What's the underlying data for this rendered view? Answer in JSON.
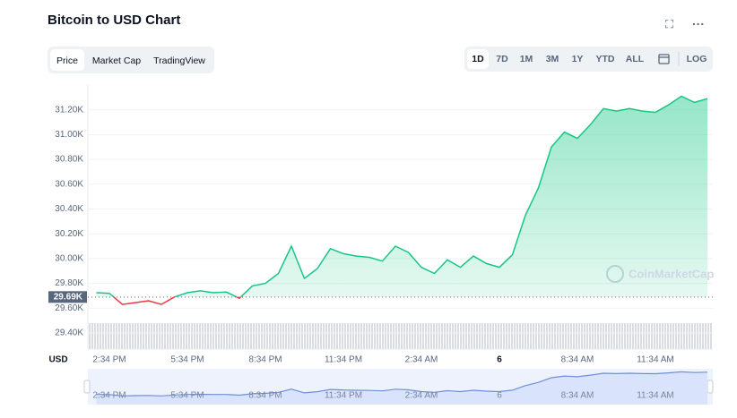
{
  "header": {
    "title": "Bitcoin to USD Chart"
  },
  "tabs": [
    "Price",
    "Market Cap",
    "TradingView"
  ],
  "ranges": [
    "1D",
    "7D",
    "1M",
    "3M",
    "1Y",
    "YTD",
    "ALL"
  ],
  "log_label": "LOG",
  "chart_data": {
    "type": "line",
    "currency_label": "USD",
    "watermark": "CoinMarketCap",
    "categories": [
      null,
      "2:34 PM",
      null,
      null,
      null,
      null,
      null,
      "5:34 PM",
      null,
      null,
      null,
      null,
      null,
      "8:34 PM",
      null,
      null,
      null,
      null,
      null,
      "11:34 PM",
      null,
      null,
      null,
      null,
      null,
      "2:34 AM",
      null,
      null,
      null,
      null,
      null,
      "6",
      null,
      null,
      null,
      null,
      null,
      "8:34 AM",
      null,
      null,
      null,
      null,
      null,
      "11:34 AM",
      null,
      null,
      null,
      null
    ],
    "values": [
      29725,
      29720,
      29630,
      29645,
      29660,
      29630,
      29690,
      29725,
      29740,
      29725,
      29730,
      29680,
      29780,
      29800,
      29880,
      30100,
      29840,
      29920,
      30080,
      30040,
      30020,
      30010,
      29980,
      30100,
      30050,
      29930,
      29880,
      29990,
      29930,
      30020,
      29960,
      29930,
      30030,
      30350,
      30570,
      30900,
      31020,
      30970,
      31080,
      31210,
      31190,
      31210,
      31190,
      31180,
      31240,
      31310,
      31260,
      31290
    ],
    "up_color": "#16c784",
    "down_color": "#ea3943",
    "reference": {
      "value": 29690,
      "label": "29.69K"
    },
    "ylim": [
      29270,
      31400
    ],
    "yticks": [
      {
        "value": 29400,
        "label": "29.40K"
      },
      {
        "value": 29600,
        "label": "29.60K"
      },
      {
        "value": 29800,
        "label": "29.80K"
      },
      {
        "value": 30000,
        "label": "30.00K"
      },
      {
        "value": 30200,
        "label": "30.20K"
      },
      {
        "value": 30400,
        "label": "30.40K"
      },
      {
        "value": 30600,
        "label": "30.60K"
      },
      {
        "value": 30800,
        "label": "30.80K"
      },
      {
        "value": 31000,
        "label": "31.00K"
      },
      {
        "value": 31200,
        "label": "31.20K"
      }
    ],
    "grid": true
  }
}
